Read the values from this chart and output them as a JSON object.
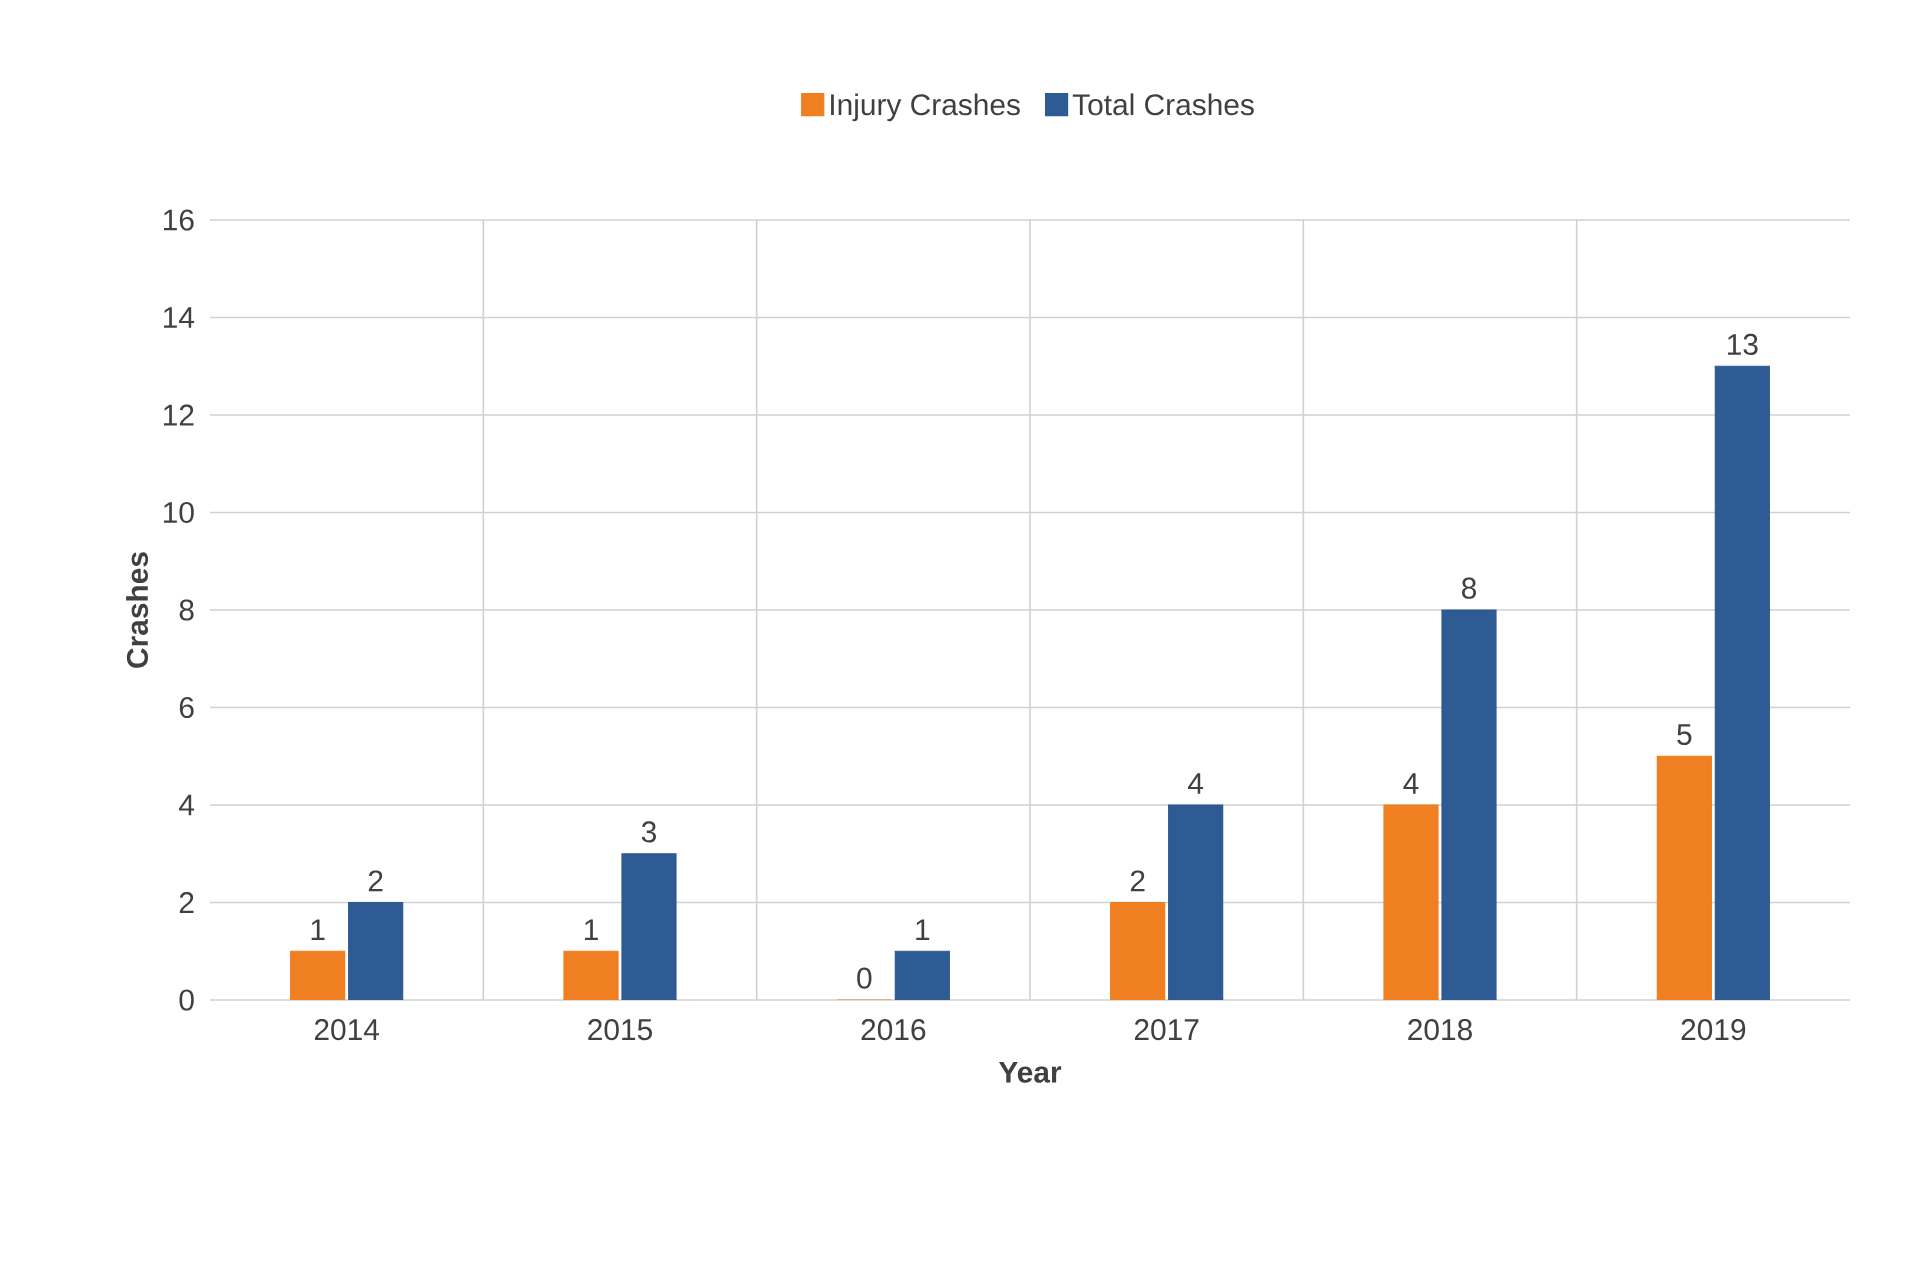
{
  "chart_data": {
    "type": "bar",
    "xlabel": "Year",
    "ylabel": "Crashes",
    "categories": [
      "2014",
      "2015",
      "2016",
      "2017",
      "2018",
      "2019"
    ],
    "series": [
      {
        "name": "Injury Crashes",
        "color": "#f07f22",
        "values": [
          1,
          1,
          0,
          2,
          4,
          5
        ]
      },
      {
        "name": "Total Crashes",
        "color": "#2e5b94",
        "values": [
          2,
          3,
          1,
          4,
          8,
          13
        ]
      }
    ],
    "ylim": [
      0,
      16
    ],
    "yticks": [
      0,
      2,
      4,
      6,
      8,
      10,
      12,
      14,
      16
    ],
    "grid": true,
    "legend": "top",
    "data_labels": true
  }
}
